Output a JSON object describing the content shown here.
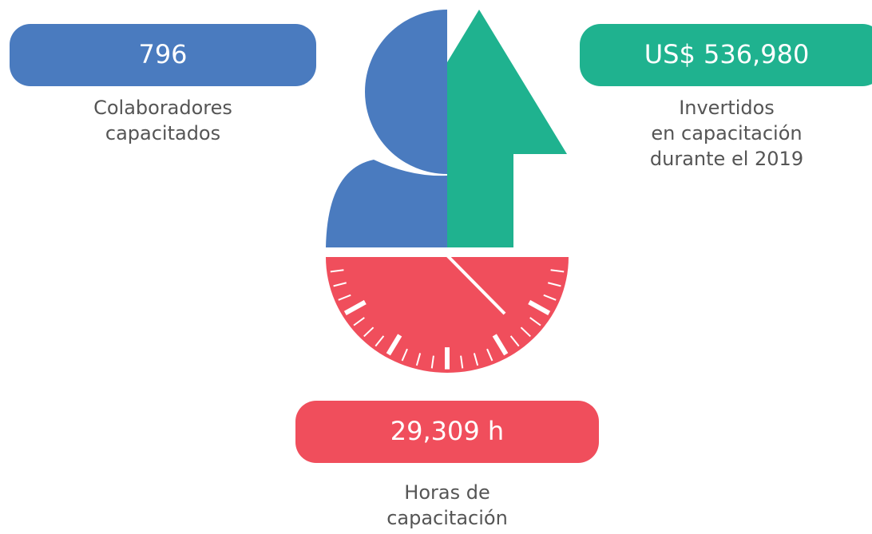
{
  "stats": [
    {
      "value": "796",
      "label": [
        "Colaboradores",
        "capacitados"
      ]
    },
    {
      "value": "US$ 536,980",
      "label": [
        "Invertidos",
        "en capacitación",
        "durante el 2019"
      ]
    },
    {
      "value": "29,309 h",
      "label": [
        "Horas de",
        "capacitación"
      ]
    }
  ]
}
